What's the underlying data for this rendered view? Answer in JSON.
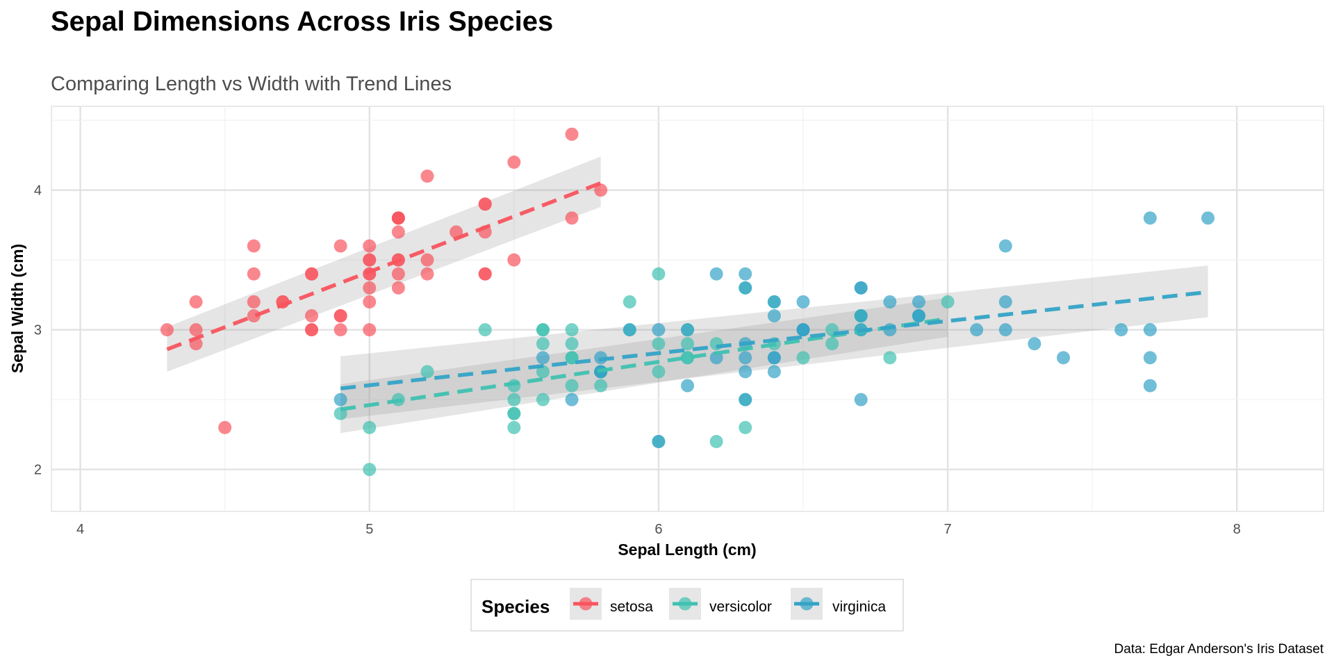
{
  "chart_data": {
    "type": "scatter",
    "title": "Sepal Dimensions Across Iris Species",
    "subtitle": "Comparing Length vs Width with Trend Lines",
    "xlabel": "Sepal Length (cm)",
    "ylabel": "Sepal Width (cm)",
    "caption": "Data: Edgar Anderson's Iris Dataset",
    "xlim": [
      3.9,
      8.3
    ],
    "ylim": [
      1.7,
      4.6
    ],
    "xticks": [
      4,
      5,
      6,
      7,
      8
    ],
    "yticks": [
      2,
      3,
      4
    ],
    "grid": true,
    "legend": {
      "title": "Species",
      "position": "bottom"
    },
    "series": [
      {
        "name": "setosa",
        "color": "#F8545E",
        "points": [
          [
            5.1,
            3.5
          ],
          [
            4.9,
            3.0
          ],
          [
            4.7,
            3.2
          ],
          [
            4.6,
            3.1
          ],
          [
            5.0,
            3.6
          ],
          [
            5.4,
            3.9
          ],
          [
            4.6,
            3.4
          ],
          [
            5.0,
            3.4
          ],
          [
            4.4,
            2.9
          ],
          [
            4.9,
            3.1
          ],
          [
            5.4,
            3.7
          ],
          [
            4.8,
            3.4
          ],
          [
            4.8,
            3.0
          ],
          [
            4.3,
            3.0
          ],
          [
            5.8,
            4.0
          ],
          [
            5.7,
            4.4
          ],
          [
            5.4,
            3.9
          ],
          [
            5.1,
            3.5
          ],
          [
            5.7,
            3.8
          ],
          [
            5.1,
            3.8
          ],
          [
            5.4,
            3.4
          ],
          [
            5.1,
            3.7
          ],
          [
            4.6,
            3.6
          ],
          [
            5.1,
            3.3
          ],
          [
            4.8,
            3.4
          ],
          [
            5.0,
            3.0
          ],
          [
            5.0,
            3.4
          ],
          [
            5.2,
            3.5
          ],
          [
            5.2,
            3.4
          ],
          [
            4.7,
            3.2
          ],
          [
            4.8,
            3.1
          ],
          [
            5.4,
            3.4
          ],
          [
            5.2,
            4.1
          ],
          [
            5.5,
            4.2
          ],
          [
            4.9,
            3.1
          ],
          [
            5.0,
            3.2
          ],
          [
            5.5,
            3.5
          ],
          [
            4.9,
            3.6
          ],
          [
            4.4,
            3.0
          ],
          [
            5.1,
            3.4
          ],
          [
            5.0,
            3.5
          ],
          [
            4.5,
            2.3
          ],
          [
            4.4,
            3.2
          ],
          [
            5.0,
            3.5
          ],
          [
            5.1,
            3.8
          ],
          [
            4.8,
            3.0
          ],
          [
            5.1,
            3.8
          ],
          [
            4.6,
            3.2
          ],
          [
            5.3,
            3.7
          ],
          [
            5.0,
            3.3
          ]
        ],
        "trend": {
          "x": [
            4.3,
            5.8
          ],
          "y": [
            2.86,
            4.05
          ]
        },
        "ci": {
          "lower": [
            2.7,
            3.88
          ],
          "upper": [
            3.02,
            4.24
          ]
        }
      },
      {
        "name": "versicolor",
        "color": "#3FC1B0",
        "points": [
          [
            7.0,
            3.2
          ],
          [
            6.4,
            3.2
          ],
          [
            6.9,
            3.1
          ],
          [
            5.5,
            2.3
          ],
          [
            6.5,
            2.8
          ],
          [
            5.7,
            2.8
          ],
          [
            6.3,
            3.3
          ],
          [
            4.9,
            2.4
          ],
          [
            6.6,
            2.9
          ],
          [
            5.2,
            2.7
          ],
          [
            5.0,
            2.0
          ],
          [
            5.9,
            3.0
          ],
          [
            6.0,
            2.2
          ],
          [
            6.1,
            2.9
          ],
          [
            5.6,
            2.9
          ],
          [
            6.7,
            3.1
          ],
          [
            5.6,
            3.0
          ],
          [
            5.8,
            2.7
          ],
          [
            6.2,
            2.2
          ],
          [
            5.6,
            2.5
          ],
          [
            5.9,
            3.2
          ],
          [
            6.1,
            2.8
          ],
          [
            6.3,
            2.5
          ],
          [
            6.1,
            2.8
          ],
          [
            6.4,
            2.9
          ],
          [
            6.6,
            3.0
          ],
          [
            6.8,
            2.8
          ],
          [
            6.7,
            3.0
          ],
          [
            6.0,
            2.9
          ],
          [
            5.7,
            2.6
          ],
          [
            5.5,
            2.4
          ],
          [
            5.5,
            2.4
          ],
          [
            5.8,
            2.7
          ],
          [
            6.0,
            2.7
          ],
          [
            5.4,
            3.0
          ],
          [
            6.0,
            3.4
          ],
          [
            6.7,
            3.1
          ],
          [
            6.3,
            2.3
          ],
          [
            5.6,
            3.0
          ],
          [
            5.5,
            2.5
          ],
          [
            5.5,
            2.6
          ],
          [
            6.1,
            3.0
          ],
          [
            5.8,
            2.6
          ],
          [
            5.0,
            2.3
          ],
          [
            5.6,
            2.7
          ],
          [
            5.7,
            3.0
          ],
          [
            5.7,
            2.9
          ],
          [
            6.2,
            2.9
          ],
          [
            5.1,
            2.5
          ],
          [
            5.7,
            2.8
          ]
        ],
        "trend": {
          "x": [
            4.9,
            7.0
          ],
          "y": [
            2.43,
            3.08
          ]
        },
        "ci": {
          "lower": [
            2.26,
            2.95
          ],
          "upper": [
            2.61,
            3.23
          ]
        }
      },
      {
        "name": "virginica",
        "color": "#33A3C6",
        "points": [
          [
            6.3,
            3.3
          ],
          [
            5.8,
            2.7
          ],
          [
            7.1,
            3.0
          ],
          [
            6.3,
            2.9
          ],
          [
            6.5,
            3.0
          ],
          [
            7.6,
            3.0
          ],
          [
            4.9,
            2.5
          ],
          [
            7.3,
            2.9
          ],
          [
            6.7,
            2.5
          ],
          [
            7.2,
            3.6
          ],
          [
            6.5,
            3.2
          ],
          [
            6.4,
            2.7
          ],
          [
            6.8,
            3.0
          ],
          [
            5.7,
            2.5
          ],
          [
            5.8,
            2.8
          ],
          [
            6.4,
            3.2
          ],
          [
            6.5,
            3.0
          ],
          [
            7.7,
            3.8
          ],
          [
            7.7,
            2.6
          ],
          [
            6.0,
            2.2
          ],
          [
            6.9,
            3.2
          ],
          [
            5.6,
            2.8
          ],
          [
            7.7,
            2.8
          ],
          [
            6.3,
            2.7
          ],
          [
            6.7,
            3.3
          ],
          [
            7.2,
            3.2
          ],
          [
            6.2,
            2.8
          ],
          [
            6.1,
            3.0
          ],
          [
            6.4,
            2.8
          ],
          [
            7.2,
            3.0
          ],
          [
            7.4,
            2.8
          ],
          [
            7.9,
            3.8
          ],
          [
            6.4,
            2.8
          ],
          [
            6.3,
            2.8
          ],
          [
            6.1,
            2.6
          ],
          [
            7.7,
            3.0
          ],
          [
            6.3,
            3.4
          ],
          [
            6.4,
            3.1
          ],
          [
            6.0,
            3.0
          ],
          [
            6.9,
            3.1
          ],
          [
            6.7,
            3.1
          ],
          [
            6.9,
            3.1
          ],
          [
            5.8,
            2.7
          ],
          [
            6.8,
            3.2
          ],
          [
            6.7,
            3.3
          ],
          [
            6.7,
            3.0
          ],
          [
            6.3,
            2.5
          ],
          [
            6.5,
            3.0
          ],
          [
            6.2,
            3.4
          ],
          [
            5.9,
            3.0
          ]
        ],
        "trend": {
          "x": [
            4.9,
            7.9
          ],
          "y": [
            2.58,
            3.27
          ]
        },
        "ci": {
          "lower": [
            2.36,
            3.09
          ],
          "upper": [
            2.81,
            3.46
          ]
        }
      }
    ]
  }
}
